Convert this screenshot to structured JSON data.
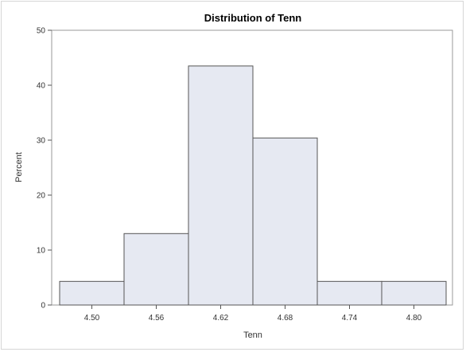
{
  "chart_data": {
    "type": "bar",
    "title": "Distribution of Tenn",
    "xlabel": "Tenn",
    "ylabel": "Percent",
    "categories": [
      "4.50",
      "4.56",
      "4.62",
      "4.68",
      "4.74",
      "4.80"
    ],
    "values": [
      4.3,
      13.0,
      43.5,
      30.4,
      4.3,
      4.3
    ],
    "ylim": [
      0,
      50
    ],
    "yticks": [
      0,
      10,
      20,
      30,
      40,
      50
    ],
    "bar_color": "#e6e9f2",
    "bar_edge_color": "#555555",
    "grid": false
  }
}
